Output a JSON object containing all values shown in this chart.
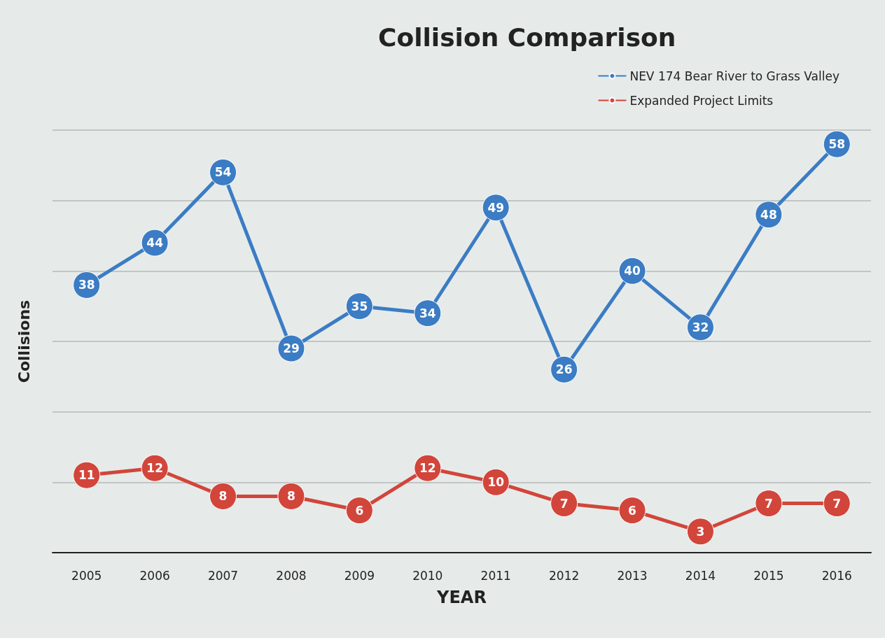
{
  "chart_data": {
    "type": "line",
    "title": "Collision Comparison",
    "xlabel": "YEAR",
    "ylabel": "Collisions",
    "categories": [
      "2005",
      "2006",
      "2007",
      "2008",
      "2009",
      "2010",
      "2011",
      "2012",
      "2013",
      "2014",
      "2015",
      "2016"
    ],
    "series": [
      {
        "name": "NEV 174 Bear River to Grass Valley",
        "color": "#3b7cc4",
        "values": [
          38,
          44,
          54,
          29,
          35,
          34,
          49,
          26,
          40,
          32,
          48,
          58
        ]
      },
      {
        "name": "Expanded Project Limits",
        "color": "#d2453a",
        "values": [
          11,
          12,
          8,
          8,
          6,
          12,
          10,
          7,
          6,
          3,
          7,
          7
        ]
      }
    ],
    "ylim": [
      0,
      60
    ],
    "yticks": [
      {
        "value": 0,
        "label": null
      },
      {
        "value": 10,
        "label": null
      },
      {
        "value": 20,
        "label": null
      },
      {
        "value": 30,
        "label": null
      },
      {
        "value": 40,
        "label": null
      },
      {
        "value": 50,
        "label": null
      },
      {
        "value": 60,
        "label": null
      }
    ],
    "tick_labels": "x",
    "grid": "y",
    "legend": "top right",
    "marker": "circle",
    "line_style": "solid",
    "data_labels": true
  }
}
